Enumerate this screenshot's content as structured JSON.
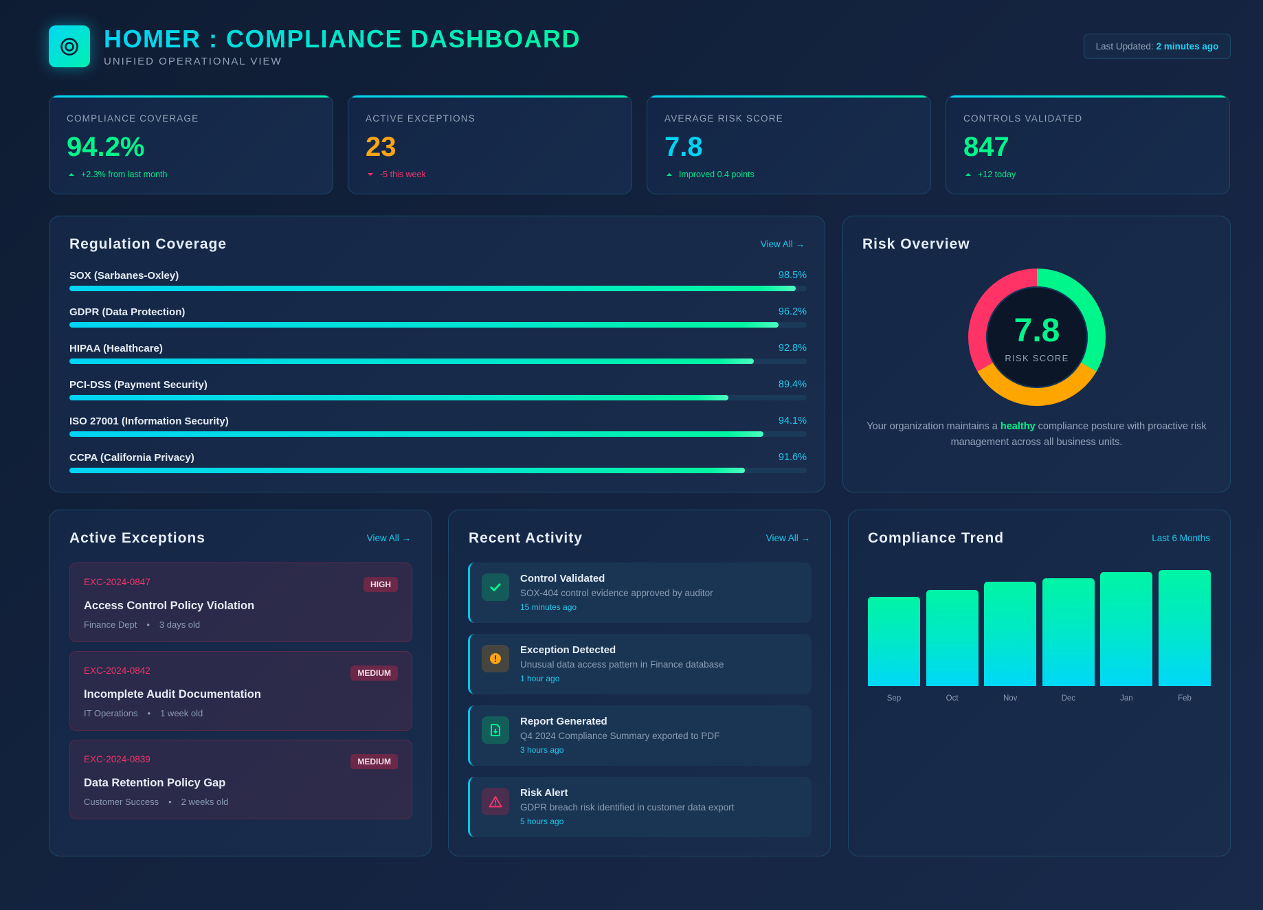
{
  "header": {
    "logo_icon": "target-icon",
    "title": "HOMER : COMPLIANCE DASHBOARD",
    "subtitle": "UNIFIED OPERATIONAL VIEW",
    "last_updated_label": "Last Updated:",
    "last_updated_value": "2 minutes ago"
  },
  "colors": {
    "accent_cyan": "#00d4f5",
    "accent_green": "#00f58a",
    "warning_orange": "#ffa500",
    "danger_red": "#f2346a",
    "muted_text": "#93a3b8"
  },
  "stats": [
    {
      "label": "COMPLIANCE COVERAGE",
      "value": "94.2%",
      "delta": "+2.3% from last month",
      "direction": "up",
      "value_color": "#00f58a",
      "delta_color": "#00e88a"
    },
    {
      "label": "ACTIVE EXCEPTIONS",
      "value": "23",
      "delta": "-5 this week",
      "direction": "down",
      "value_color": "#ffa514",
      "delta_color": "#f2346a"
    },
    {
      "label": "AVERAGE RISK SCORE",
      "value": "7.8",
      "delta": "Improved 0.4 points",
      "direction": "up",
      "value_color": "#00d4f5",
      "delta_color": "#00e88a"
    },
    {
      "label": "CONTROLS VALIDATED",
      "value": "847",
      "delta": "+12 today",
      "direction": "up",
      "value_color": "#00f58a",
      "delta_color": "#00e88a"
    }
  ],
  "regulation": {
    "title": "Regulation Coverage",
    "view_all": "View All →",
    "items": [
      {
        "name": "SOX (Sarbanes-Oxley)",
        "percent_label": "98.5%",
        "percent": 98.5
      },
      {
        "name": "GDPR (Data Protection)",
        "percent_label": "96.2%",
        "percent": 96.2
      },
      {
        "name": "HIPAA (Healthcare)",
        "percent_label": "92.8%",
        "percent": 92.8
      },
      {
        "name": "PCI-DSS (Payment Security)",
        "percent_label": "89.4%",
        "percent": 89.4
      },
      {
        "name": "ISO 27001 (Information Security)",
        "percent_label": "94.1%",
        "percent": 94.1
      },
      {
        "name": "CCPA (California Privacy)",
        "percent_label": "91.6%",
        "percent": 91.6
      }
    ]
  },
  "risk": {
    "title": "Risk Overview",
    "score": "7.8",
    "score_label": "RISK SCORE",
    "segments": [
      {
        "name": "low",
        "fraction": 0.3333,
        "color": "#00f58a"
      },
      {
        "name": "medium",
        "fraction": 0.3333,
        "color": "#ffa500"
      },
      {
        "name": "high",
        "fraction": 0.3334,
        "color": "#ff3366"
      }
    ],
    "desc_before": "Your organization maintains a ",
    "desc_highlight": "healthy",
    "desc_after": " compliance posture with proactive risk management across all business units."
  },
  "exceptions": {
    "title": "Active Exceptions",
    "view_all": "View All →",
    "items": [
      {
        "id": "EXC-2024-0847",
        "severity": "HIGH",
        "title": "Access Control Policy Violation",
        "dept": "Finance Dept",
        "age": "3 days old"
      },
      {
        "id": "EXC-2024-0842",
        "severity": "MEDIUM",
        "title": "Incomplete Audit Documentation",
        "dept": "IT Operations",
        "age": "1 week old"
      },
      {
        "id": "EXC-2024-0839",
        "severity": "MEDIUM",
        "title": "Data Retention Policy Gap",
        "dept": "Customer Success",
        "age": "2 weeks old"
      }
    ],
    "separator": "•"
  },
  "activity": {
    "title": "Recent Activity",
    "view_all": "View All →",
    "items": [
      {
        "icon": "check-icon",
        "title": "Control Validated",
        "desc": "SOX-404 control evidence approved by auditor",
        "time": "15 minutes ago"
      },
      {
        "icon": "exclamation-circle-icon",
        "title": "Exception Detected",
        "desc": "Unusual data access pattern in Finance database",
        "time": "1 hour ago"
      },
      {
        "icon": "file-download-icon",
        "title": "Report Generated",
        "desc": "Q4 2024 Compliance Summary exported to PDF",
        "time": "3 hours ago"
      },
      {
        "icon": "warning-triangle-icon",
        "title": "Risk Alert",
        "desc": "GDPR breach risk identified in customer data export",
        "time": "5 hours ago"
      }
    ]
  },
  "trend": {
    "title": "Compliance Trend",
    "range_link": "Last 6 Months"
  },
  "chart_data": {
    "type": "bar",
    "title": "Compliance Trend",
    "xlabel": "",
    "ylabel": "",
    "categories": [
      "Sep",
      "Oct",
      "Nov",
      "Dec",
      "Jan",
      "Feb"
    ],
    "values": [
      77,
      83,
      90,
      93,
      98,
      100
    ],
    "value_units": "relative % of max height",
    "ylim": [
      0,
      100
    ],
    "grid": false,
    "legend": "none"
  }
}
